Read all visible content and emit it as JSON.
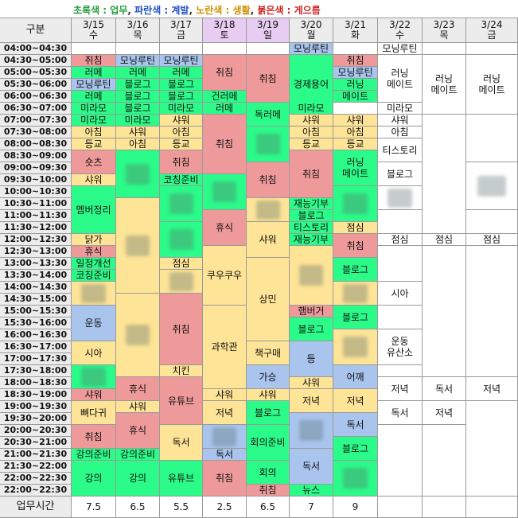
{
  "legend": {
    "parts": [
      {
        "text": "초록색 : 업무",
        "color": "#1f9e3a"
      },
      {
        "text": ", ",
        "color": "#333333"
      },
      {
        "text": "파란색 : 계발",
        "color": "#2050c8"
      },
      {
        "text": ", ",
        "color": "#333333"
      },
      {
        "text": "노란색 : 생활",
        "color": "#d09000"
      },
      {
        "text": ", ",
        "color": "#333333"
      },
      {
        "text": "붉은색 : 게으름",
        "color": "#d02020"
      }
    ]
  },
  "colors": {
    "G": "#2bfb88",
    "B": "#a9c5ee",
    "Y": "#fee496",
    "R": "#ee9a9a",
    "W": "#ffffff",
    "H": "#ececec",
    "hl": "#e8cdf2"
  },
  "header": {
    "corner": "구분",
    "footer_label": "업무시간"
  },
  "days": [
    {
      "date": "3/15",
      "day": "수",
      "hl": false
    },
    {
      "date": "3/16",
      "day": "목",
      "hl": false
    },
    {
      "date": "3/17",
      "day": "금",
      "hl": false
    },
    {
      "date": "3/18",
      "day": "토",
      "hl": true
    },
    {
      "date": "3/19",
      "day": "일",
      "hl": true
    },
    {
      "date": "3/20",
      "day": "월",
      "hl": false
    },
    {
      "date": "3/21",
      "day": "화",
      "hl": false
    },
    {
      "date": "3/22",
      "day": "수",
      "hl": false
    },
    {
      "date": "3/23",
      "day": "목",
      "hl": false
    },
    {
      "date": "3/24",
      "day": "금",
      "hl": false
    }
  ],
  "times": [
    "04:00~04:30",
    "04:30~05:00",
    "05:00~05:30",
    "05:30~06:00",
    "06:00~06:30",
    "06:30~07:00",
    "07:00~07:30",
    "07:30~08:00",
    "08:00~08:30",
    "08:30~09:00",
    "09:00~09:30",
    "09:30~10:00",
    "10:00~10:30",
    "10:30~11:00",
    "11:00~11:30",
    "11:30~12:00",
    "12:00~12:30",
    "12:30~13:00",
    "13:00~13:30",
    "13:30~14:00",
    "14:00~14:30",
    "14:30~15:00",
    "15:00~15:30",
    "15:30~16:00",
    "16:00~16:30",
    "16:30~17:00",
    "17:00~17:30",
    "17:30~18:00",
    "18:00~18:30",
    "18:30~19:00",
    "19:00~19:30",
    "19:30~20:00",
    "20:00~20:30",
    "20:30~21:00",
    "21:00~21:30",
    "21:30~22:00",
    "22:00~22:30",
    "22:00~22:30"
  ],
  "work_hours": [
    "7.5",
    "6.5",
    "5.5",
    "2.5",
    "6.5",
    "7",
    "9",
    "",
    "",
    ""
  ],
  "events": [
    {
      "c": 0,
      "s": 0,
      "n": 1,
      "t": "",
      "col": "W"
    },
    {
      "c": 0,
      "s": 1,
      "n": 1,
      "t": "취침",
      "col": "R"
    },
    {
      "c": 0,
      "s": 2,
      "n": 1,
      "t": "러메",
      "col": "G"
    },
    {
      "c": 0,
      "s": 3,
      "n": 1,
      "t": "모닝루틴",
      "col": "B"
    },
    {
      "c": 0,
      "s": 4,
      "n": 1,
      "t": "러메",
      "col": "G"
    },
    {
      "c": 0,
      "s": 5,
      "n": 1,
      "t": "미라모",
      "col": "G"
    },
    {
      "c": 0,
      "s": 6,
      "n": 1,
      "t": "미라모",
      "col": "G"
    },
    {
      "c": 0,
      "s": 7,
      "n": 1,
      "t": "아침",
      "col": "Y"
    },
    {
      "c": 0,
      "s": 8,
      "n": 1,
      "t": "등교",
      "col": "Y"
    },
    {
      "c": 0,
      "s": 9,
      "n": 2,
      "t": "숏츠",
      "col": "R"
    },
    {
      "c": 0,
      "s": 11,
      "n": 1,
      "t": "샤워",
      "col": "Y"
    },
    {
      "c": 0,
      "s": 12,
      "n": 4,
      "t": "멤버정리",
      "col": "G"
    },
    {
      "c": 0,
      "s": 16,
      "n": 1,
      "t": "닭가",
      "col": "Y"
    },
    {
      "c": 0,
      "s": 17,
      "n": 1,
      "t": "휴식",
      "col": "R"
    },
    {
      "c": 0,
      "s": 18,
      "n": 1,
      "t": "일정개선",
      "col": "G"
    },
    {
      "c": 0,
      "s": 19,
      "n": 1,
      "t": "코칭준비",
      "col": "G"
    },
    {
      "c": 0,
      "s": 20,
      "n": 2,
      "t": "",
      "col": "Y",
      "blur": true
    },
    {
      "c": 0,
      "s": 22,
      "n": 3,
      "t": "운동",
      "col": "B"
    },
    {
      "c": 0,
      "s": 25,
      "n": 2,
      "t": "시아",
      "col": "Y"
    },
    {
      "c": 0,
      "s": 27,
      "n": 2,
      "t": "",
      "col": "G",
      "blur": true
    },
    {
      "c": 0,
      "s": 29,
      "n": 1,
      "t": "샤워",
      "col": "R"
    },
    {
      "c": 0,
      "s": 30,
      "n": 2,
      "t": "뼈다귀",
      "col": "Y"
    },
    {
      "c": 0,
      "s": 32,
      "n": 2,
      "t": "취침",
      "col": "R"
    },
    {
      "c": 0,
      "s": 34,
      "n": 1,
      "t": "강의준비",
      "col": "G"
    },
    {
      "c": 0,
      "s": 35,
      "n": 3,
      "t": "강의",
      "col": "G"
    },
    {
      "c": 1,
      "s": 0,
      "n": 1,
      "t": "",
      "col": "W"
    },
    {
      "c": 1,
      "s": 1,
      "n": 1,
      "t": "모닝루틴",
      "col": "B"
    },
    {
      "c": 1,
      "s": 2,
      "n": 1,
      "t": "러메",
      "col": "G"
    },
    {
      "c": 1,
      "s": 3,
      "n": 1,
      "t": "블로그",
      "col": "G"
    },
    {
      "c": 1,
      "s": 4,
      "n": 1,
      "t": "블로그",
      "col": "G"
    },
    {
      "c": 1,
      "s": 5,
      "n": 1,
      "t": "블로그",
      "col": "G"
    },
    {
      "c": 1,
      "s": 6,
      "n": 1,
      "t": "미라모",
      "col": "G"
    },
    {
      "c": 1,
      "s": 7,
      "n": 1,
      "t": "샤워",
      "col": "Y"
    },
    {
      "c": 1,
      "s": 8,
      "n": 1,
      "t": "아침",
      "col": "Y"
    },
    {
      "c": 1,
      "s": 9,
      "n": 4,
      "t": "",
      "col": "G",
      "blur": true
    },
    {
      "c": 1,
      "s": 13,
      "n": 8,
      "t": "",
      "col": "Y",
      "blur": true
    },
    {
      "c": 1,
      "s": 21,
      "n": 7,
      "t": "",
      "col": "Y",
      "blur": true
    },
    {
      "c": 1,
      "s": 28,
      "n": 2,
      "t": "휴식",
      "col": "R"
    },
    {
      "c": 1,
      "s": 30,
      "n": 1,
      "t": "샤워",
      "col": "Y"
    },
    {
      "c": 1,
      "s": 31,
      "n": 3,
      "t": "휴식",
      "col": "R"
    },
    {
      "c": 1,
      "s": 34,
      "n": 1,
      "t": "강의준비",
      "col": "G"
    },
    {
      "c": 1,
      "s": 35,
      "n": 3,
      "t": "강의",
      "col": "G"
    },
    {
      "c": 2,
      "s": 0,
      "n": 1,
      "t": "",
      "col": "W"
    },
    {
      "c": 2,
      "s": 1,
      "n": 1,
      "t": "모닝루틴",
      "col": "B"
    },
    {
      "c": 2,
      "s": 2,
      "n": 1,
      "t": "러메",
      "col": "G"
    },
    {
      "c": 2,
      "s": 3,
      "n": 1,
      "t": "블로그",
      "col": "G"
    },
    {
      "c": 2,
      "s": 4,
      "n": 1,
      "t": "블로그",
      "col": "G"
    },
    {
      "c": 2,
      "s": 5,
      "n": 1,
      "t": "미라모",
      "col": "G"
    },
    {
      "c": 2,
      "s": 6,
      "n": 1,
      "t": "샤워",
      "col": "Y"
    },
    {
      "c": 2,
      "s": 7,
      "n": 1,
      "t": "아침",
      "col": "Y"
    },
    {
      "c": 2,
      "s": 8,
      "n": 1,
      "t": "등교",
      "col": "Y"
    },
    {
      "c": 2,
      "s": 9,
      "n": 2,
      "t": "취침",
      "col": "R"
    },
    {
      "c": 2,
      "s": 11,
      "n": 1,
      "t": "코칭준비",
      "col": "G"
    },
    {
      "c": 2,
      "s": 12,
      "n": 3,
      "t": "",
      "col": "G",
      "blur": true
    },
    {
      "c": 2,
      "s": 15,
      "n": 3,
      "t": "",
      "col": "G",
      "blur": true
    },
    {
      "c": 2,
      "s": 18,
      "n": 1,
      "t": "점심",
      "col": "Y"
    },
    {
      "c": 2,
      "s": 19,
      "n": 2,
      "t": "",
      "col": "Y",
      "blur": true
    },
    {
      "c": 2,
      "s": 21,
      "n": 6,
      "t": "취침",
      "col": "R"
    },
    {
      "c": 2,
      "s": 27,
      "n": 1,
      "t": "치킨",
      "col": "Y"
    },
    {
      "c": 2,
      "s": 28,
      "n": 4,
      "t": "유튜브",
      "col": "R"
    },
    {
      "c": 2,
      "s": 32,
      "n": 3,
      "t": "독서",
      "col": "Y"
    },
    {
      "c": 2,
      "s": 35,
      "n": 3,
      "t": "유튜브",
      "col": "G"
    },
    {
      "c": 3,
      "s": 0,
      "n": 1,
      "t": "",
      "col": "W"
    },
    {
      "c": 3,
      "s": 1,
      "n": 3,
      "t": "취침",
      "col": "R"
    },
    {
      "c": 3,
      "s": 4,
      "n": 1,
      "t": "건러메",
      "col": "G"
    },
    {
      "c": 3,
      "s": 5,
      "n": 1,
      "t": "러메",
      "col": "G"
    },
    {
      "c": 3,
      "s": 6,
      "n": 5,
      "t": "취침",
      "col": "R"
    },
    {
      "c": 3,
      "s": 11,
      "n": 3,
      "t": "",
      "col": "G",
      "blur": true
    },
    {
      "c": 3,
      "s": 14,
      "n": 3,
      "t": "휴식",
      "col": "R"
    },
    {
      "c": 3,
      "s": 17,
      "n": 5,
      "t": "쿠우쿠우",
      "col": "Y"
    },
    {
      "c": 3,
      "s": 22,
      "n": 7,
      "t": "과학관",
      "col": "Y"
    },
    {
      "c": 3,
      "s": 29,
      "n": 1,
      "t": "샤워",
      "col": "Y"
    },
    {
      "c": 3,
      "s": 30,
      "n": 2,
      "t": "저녁",
      "col": "Y"
    },
    {
      "c": 3,
      "s": 32,
      "n": 2,
      "t": "",
      "col": "B",
      "blur": true
    },
    {
      "c": 3,
      "s": 34,
      "n": 1,
      "t": "독서",
      "col": "B"
    },
    {
      "c": 3,
      "s": 35,
      "n": 3,
      "t": "취침",
      "col": "R"
    },
    {
      "c": 4,
      "s": 0,
      "n": 1,
      "t": "",
      "col": "W"
    },
    {
      "c": 4,
      "s": 1,
      "n": 4,
      "t": "취침",
      "col": "R"
    },
    {
      "c": 4,
      "s": 5,
      "n": 2,
      "t": "독러메",
      "col": "G"
    },
    {
      "c": 4,
      "s": 7,
      "n": 3,
      "t": "",
      "col": "G",
      "blur": true
    },
    {
      "c": 4,
      "s": 10,
      "n": 3,
      "t": "취침",
      "col": "R"
    },
    {
      "c": 4,
      "s": 13,
      "n": 2,
      "t": "",
      "col": "Y",
      "blur": true
    },
    {
      "c": 4,
      "s": 15,
      "n": 3,
      "t": "샤워",
      "col": "Y"
    },
    {
      "c": 4,
      "s": 18,
      "n": 7,
      "t": "상민",
      "col": "Y"
    },
    {
      "c": 4,
      "s": 25,
      "n": 2,
      "t": "책구매",
      "col": "Y"
    },
    {
      "c": 4,
      "s": 27,
      "n": 2,
      "t": "가승",
      "col": "B"
    },
    {
      "c": 4,
      "s": 29,
      "n": 1,
      "t": "샤워",
      "col": "Y"
    },
    {
      "c": 4,
      "s": 30,
      "n": 2,
      "t": "블로그",
      "col": "G"
    },
    {
      "c": 4,
      "s": 32,
      "n": 3,
      "t": "회의준비",
      "col": "G"
    },
    {
      "c": 4,
      "s": 35,
      "n": 2,
      "t": "회의",
      "col": "G"
    },
    {
      "c": 4,
      "s": 37,
      "n": 1,
      "t": "취침",
      "col": "R"
    },
    {
      "c": 5,
      "s": 0,
      "n": 1,
      "t": "모닝루틴",
      "col": "B"
    },
    {
      "c": 5,
      "s": 1,
      "n": 5,
      "t": "경제용어",
      "col": "G"
    },
    {
      "c": 5,
      "s": 5,
      "n": 1,
      "t": "미라모",
      "col": "G"
    },
    {
      "c": 5,
      "s": 6,
      "n": 1,
      "t": "샤워",
      "col": "Y"
    },
    {
      "c": 5,
      "s": 7,
      "n": 1,
      "t": "아침",
      "col": "Y"
    },
    {
      "c": 5,
      "s": 8,
      "n": 1,
      "t": "등교",
      "col": "Y"
    },
    {
      "c": 5,
      "s": 9,
      "n": 4,
      "t": "취침",
      "col": "R"
    },
    {
      "c": 5,
      "s": 13,
      "n": 1,
      "t": "재능기부",
      "col": "G"
    },
    {
      "c": 5,
      "s": 14,
      "n": 1,
      "t": "블로그",
      "col": "G"
    },
    {
      "c": 5,
      "s": 15,
      "n": 1,
      "t": "티스토리",
      "col": "G"
    },
    {
      "c": 5,
      "s": 16,
      "n": 1,
      "t": "재능기부",
      "col": "G"
    },
    {
      "c": 5,
      "s": 17,
      "n": 5,
      "t": "",
      "col": "Y",
      "blur": true
    },
    {
      "c": 5,
      "s": 22,
      "n": 1,
      "t": "햄버거",
      "col": "R"
    },
    {
      "c": 5,
      "s": 23,
      "n": 2,
      "t": "블로그",
      "col": "G"
    },
    {
      "c": 5,
      "s": 25,
      "n": 3,
      "t": "등",
      "col": "B"
    },
    {
      "c": 5,
      "s": 28,
      "n": 1,
      "t": "샤워",
      "col": "Y"
    },
    {
      "c": 5,
      "s": 29,
      "n": 2,
      "t": "저녁",
      "col": "Y"
    },
    {
      "c": 5,
      "s": 31,
      "n": 3,
      "t": "",
      "col": "B",
      "blur": true
    },
    {
      "c": 5,
      "s": 34,
      "n": 3,
      "t": "독서",
      "col": "B"
    },
    {
      "c": 5,
      "s": 37,
      "n": 1,
      "t": "뉴스",
      "col": "G"
    },
    {
      "c": 6,
      "s": 0,
      "n": 1,
      "t": "",
      "col": "W"
    },
    {
      "c": 6,
      "s": 1,
      "n": 1,
      "t": "취침",
      "col": "R"
    },
    {
      "c": 6,
      "s": 2,
      "n": 1,
      "t": "모닝루틴",
      "col": "B"
    },
    {
      "c": 6,
      "s": 3,
      "n": 1,
      "t": "러닝",
      "col": "G"
    },
    {
      "c": 6,
      "s": 4,
      "n": 1,
      "t": "메이트",
      "col": "G"
    },
    {
      "c": 6,
      "s": 5,
      "n": 1,
      "t": "",
      "col": "W"
    },
    {
      "c": 6,
      "s": 6,
      "n": 1,
      "t": "샤워",
      "col": "Y"
    },
    {
      "c": 6,
      "s": 7,
      "n": 1,
      "t": "아침",
      "col": "Y"
    },
    {
      "c": 6,
      "s": 8,
      "n": 1,
      "t": "등교",
      "col": "Y"
    },
    {
      "c": 6,
      "s": 9,
      "n": 3,
      "t": "러닝\n메이트",
      "col": "G"
    },
    {
      "c": 6,
      "s": 12,
      "n": 3,
      "t": "",
      "col": "G",
      "blur": true
    },
    {
      "c": 6,
      "s": 15,
      "n": 1,
      "t": "점심",
      "col": "Y"
    },
    {
      "c": 6,
      "s": 16,
      "n": 2,
      "t": "취침",
      "col": "R"
    },
    {
      "c": 6,
      "s": 18,
      "n": 2,
      "t": "블로그",
      "col": "G"
    },
    {
      "c": 6,
      "s": 20,
      "n": 2,
      "t": "",
      "col": "Y",
      "blur": true
    },
    {
      "c": 6,
      "s": 22,
      "n": 2,
      "t": "블로그",
      "col": "G"
    },
    {
      "c": 6,
      "s": 24,
      "n": 3,
      "t": "",
      "col": "Y",
      "blur": true
    },
    {
      "c": 6,
      "s": 27,
      "n": 2,
      "t": "어깨",
      "col": "B"
    },
    {
      "c": 6,
      "s": 29,
      "n": 2,
      "t": "저녁",
      "col": "Y"
    },
    {
      "c": 6,
      "s": 31,
      "n": 2,
      "t": "독서",
      "col": "B"
    },
    {
      "c": 6,
      "s": 33,
      "n": 2,
      "t": "블로그",
      "col": "G"
    },
    {
      "c": 6,
      "s": 35,
      "n": 3,
      "t": "",
      "col": "G",
      "blur": true
    },
    {
      "c": 7,
      "s": 0,
      "n": 1,
      "t": "모닝루틴",
      "col": "W"
    },
    {
      "c": 7,
      "s": 1,
      "n": 4,
      "t": "러닝\n메이트",
      "col": "W"
    },
    {
      "c": 7,
      "s": 5,
      "n": 1,
      "t": "미라모",
      "col": "W"
    },
    {
      "c": 7,
      "s": 6,
      "n": 1,
      "t": "샤워",
      "col": "W"
    },
    {
      "c": 7,
      "s": 7,
      "n": 1,
      "t": "아침",
      "col": "W"
    },
    {
      "c": 7,
      "s": 8,
      "n": 2,
      "t": "티스토리",
      "col": "W"
    },
    {
      "c": 7,
      "s": 10,
      "n": 2,
      "t": "블로그",
      "col": "W"
    },
    {
      "c": 7,
      "s": 12,
      "n": 2,
      "t": "",
      "col": "W",
      "blur": true
    },
    {
      "c": 7,
      "s": 14,
      "n": 2,
      "t": "",
      "col": "W"
    },
    {
      "c": 7,
      "s": 16,
      "n": 1,
      "t": "점심",
      "col": "W"
    },
    {
      "c": 7,
      "s": 17,
      "n": 3,
      "t": "",
      "col": "W"
    },
    {
      "c": 7,
      "s": 20,
      "n": 2,
      "t": "시아",
      "col": "W"
    },
    {
      "c": 7,
      "s": 22,
      "n": 2,
      "t": "",
      "col": "W"
    },
    {
      "c": 7,
      "s": 24,
      "n": 3,
      "t": "운동\n유산소",
      "col": "W"
    },
    {
      "c": 7,
      "s": 27,
      "n": 1,
      "t": "",
      "col": "W"
    },
    {
      "c": 7,
      "s": 28,
      "n": 2,
      "t": "저녁",
      "col": "W"
    },
    {
      "c": 7,
      "s": 30,
      "n": 2,
      "t": "독서",
      "col": "W"
    },
    {
      "c": 7,
      "s": 32,
      "n": 6,
      "t": "",
      "col": "W"
    },
    {
      "c": 8,
      "s": 0,
      "n": 1,
      "t": "",
      "col": "W"
    },
    {
      "c": 8,
      "s": 1,
      "n": 5,
      "t": "러닝\n메이트",
      "col": "W"
    },
    {
      "c": 8,
      "s": 6,
      "n": 10,
      "t": "",
      "col": "W"
    },
    {
      "c": 8,
      "s": 16,
      "n": 1,
      "t": "점심",
      "col": "W"
    },
    {
      "c": 8,
      "s": 17,
      "n": 11,
      "t": "",
      "col": "W"
    },
    {
      "c": 8,
      "s": 28,
      "n": 2,
      "t": "독서",
      "col": "W"
    },
    {
      "c": 8,
      "s": 30,
      "n": 2,
      "t": "저녁",
      "col": "W"
    },
    {
      "c": 8,
      "s": 32,
      "n": 6,
      "t": "",
      "col": "W"
    },
    {
      "c": 9,
      "s": 0,
      "n": 1,
      "t": "",
      "col": "W"
    },
    {
      "c": 9,
      "s": 1,
      "n": 5,
      "t": "러닝\n메이트",
      "col": "W"
    },
    {
      "c": 9,
      "s": 6,
      "n": 4,
      "t": "",
      "col": "W"
    },
    {
      "c": 9,
      "s": 10,
      "n": 4,
      "t": "",
      "col": "W",
      "blur": true
    },
    {
      "c": 9,
      "s": 14,
      "n": 2,
      "t": "",
      "col": "W"
    },
    {
      "c": 9,
      "s": 16,
      "n": 1,
      "t": "점심",
      "col": "W"
    },
    {
      "c": 9,
      "s": 17,
      "n": 11,
      "t": "",
      "col": "W"
    },
    {
      "c": 9,
      "s": 28,
      "n": 2,
      "t": "저녁",
      "col": "W"
    },
    {
      "c": 9,
      "s": 30,
      "n": 8,
      "t": "",
      "col": "W"
    }
  ]
}
